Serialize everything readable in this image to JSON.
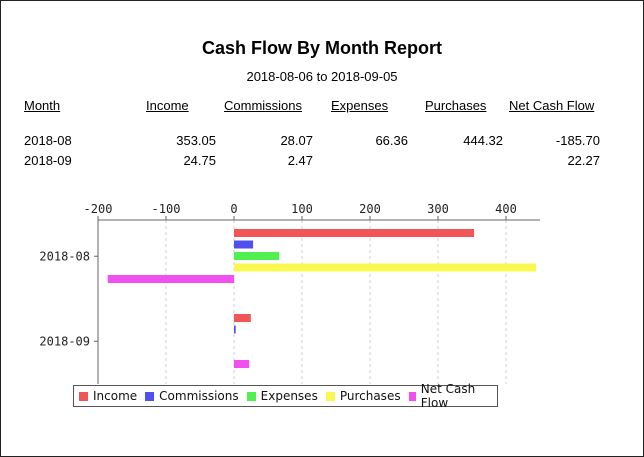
{
  "report": {
    "title": "Cash Flow By Month Report",
    "date_range": "2018-08-06 to 2018-09-05"
  },
  "table": {
    "headers": [
      "Month",
      "Income",
      "Commissions",
      "Expenses",
      "Purchases",
      "Net Cash Flow"
    ],
    "rows": [
      [
        "2018-08",
        "353.05",
        "28.07",
        "66.36",
        "444.32",
        "-185.70"
      ],
      [
        "2018-09",
        "24.75",
        "2.47",
        "",
        "",
        "22.27"
      ]
    ]
  },
  "chart_data": {
    "type": "bar",
    "orientation": "horizontal",
    "categories": [
      "2018-08",
      "2018-09"
    ],
    "series": [
      {
        "name": "Income",
        "color": "#f25555",
        "values": [
          353.05,
          24.75
        ]
      },
      {
        "name": "Commissions",
        "color": "#5050f0",
        "values": [
          28.07,
          2.47
        ]
      },
      {
        "name": "Expenses",
        "color": "#50f050",
        "values": [
          66.36,
          0
        ]
      },
      {
        "name": "Purchases",
        "color": "#f8f850",
        "values": [
          444.32,
          0
        ]
      },
      {
        "name": "Net Cash Flow",
        "color": "#f050f0",
        "values": [
          -185.7,
          22.27
        ]
      }
    ],
    "xlim": [
      -200,
      450
    ],
    "x_ticks": [
      "-200",
      "-100",
      "0",
      "100",
      "200",
      "300",
      "400"
    ],
    "x_tick_values": [
      -200,
      -100,
      0,
      100,
      200,
      300,
      400
    ],
    "x_axis_position": "top",
    "grid": true,
    "legend_position": "bottom"
  }
}
